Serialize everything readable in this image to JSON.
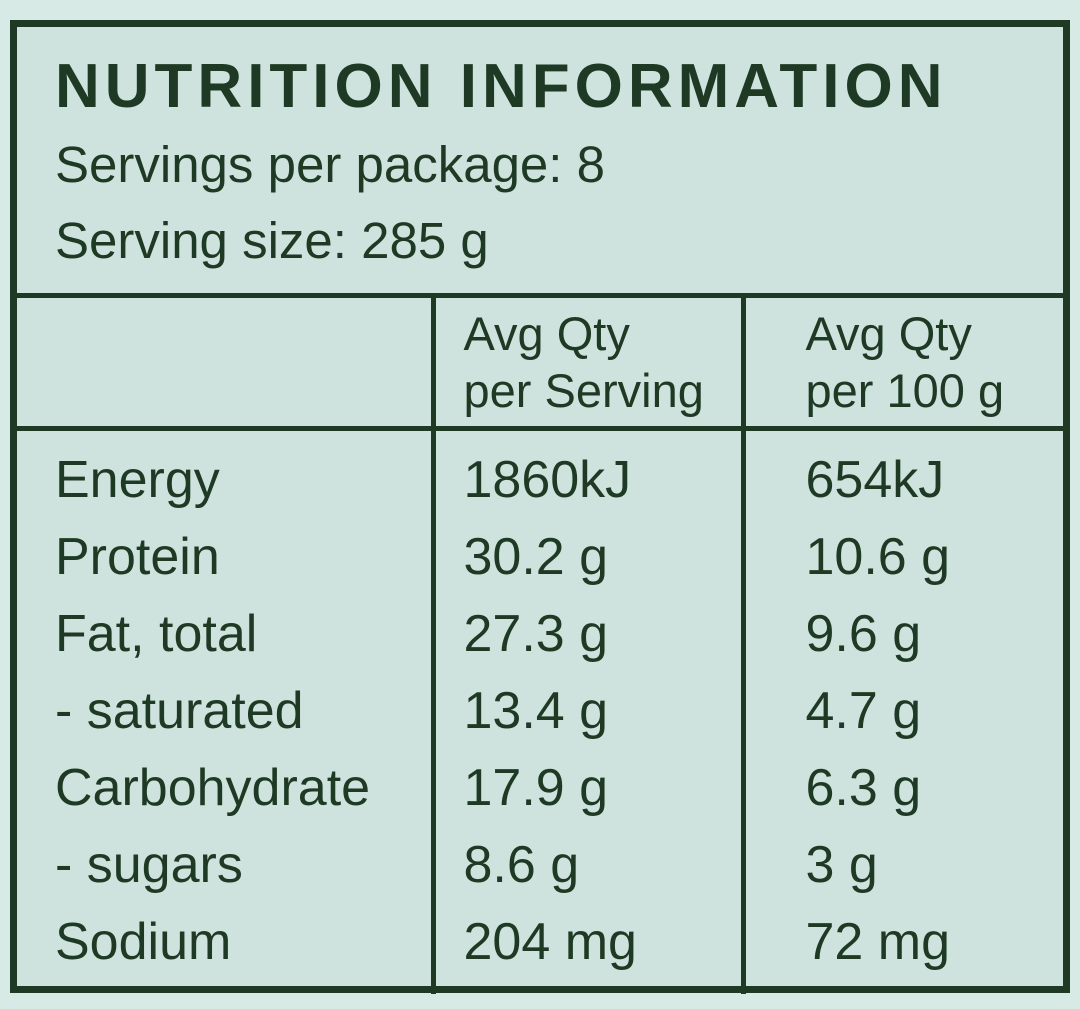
{
  "colors": {
    "page_background": "#d8eae6",
    "panel_background": "#cfe3de",
    "ink": "#1e3a24"
  },
  "label": {
    "title": "NUTRITION INFORMATION",
    "servings_line": "Servings per package: 8",
    "serving_size_line": "Serving size: 285 g",
    "columns": [
      {
        "line1": "Avg Qty",
        "line2": "per Serving"
      },
      {
        "line1": "Avg Qty",
        "line2": "per 100 g"
      }
    ],
    "rows": [
      {
        "name": "Energy",
        "per_serving": "1860kJ",
        "per_100g": "654kJ"
      },
      {
        "name": "Protein",
        "per_serving": "30.2 g",
        "per_100g": "10.6 g"
      },
      {
        "name": "Fat, total",
        "per_serving": "27.3 g",
        "per_100g": "9.6 g"
      },
      {
        "name": "- saturated",
        "per_serving": "13.4 g",
        "per_100g": "4.7 g"
      },
      {
        "name": "Carbohydrate",
        "per_serving": "17.9 g",
        "per_100g": "6.3 g"
      },
      {
        "name": "- sugars",
        "per_serving": "8.6 g",
        "per_100g": "3 g"
      },
      {
        "name": "Sodium",
        "per_serving": "204 mg",
        "per_100g": "72 mg"
      }
    ]
  }
}
